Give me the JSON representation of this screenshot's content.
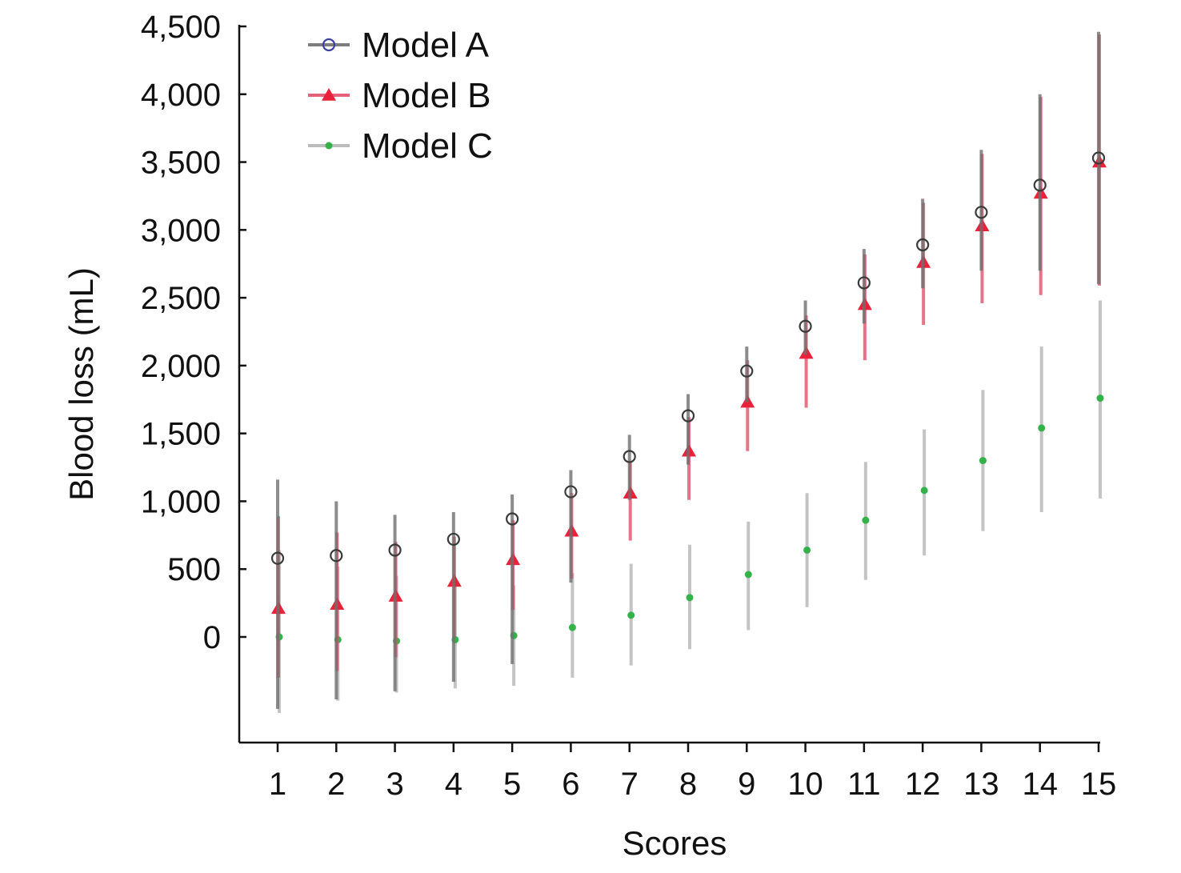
{
  "chart_data": {
    "type": "scatter",
    "title": "",
    "xlabel": "Scores",
    "ylabel": "Blood loss (mL)",
    "x": [
      1,
      2,
      3,
      4,
      5,
      6,
      7,
      8,
      9,
      10,
      11,
      12,
      13,
      14,
      15
    ],
    "x_tick_labels": [
      "1",
      "2",
      "3",
      "4",
      "5",
      "6",
      "7",
      "8",
      "9",
      "10",
      "11",
      "12",
      "13",
      "14",
      "15"
    ],
    "xlim": [
      0.3,
      15.05
    ],
    "ylim": [
      -780,
      4500
    ],
    "y_ticks": [
      0,
      500,
      1000,
      1500,
      2000,
      2500,
      3000,
      3500,
      4000,
      4500
    ],
    "y_tick_labels": [
      "0",
      "500",
      "1,000",
      "1,500",
      "2,000",
      "2,500",
      "3,000",
      "3,500",
      "4,000",
      "4,500"
    ],
    "grid": false,
    "legend_position": "top-left",
    "series": [
      {
        "name": "Model A",
        "marker": "open-circle",
        "marker_color": "#3a3a3a",
        "legend_marker_color": "#3b3fa0",
        "bar_color": "#6f6f6f",
        "values": [
          580,
          600,
          640,
          720,
          870,
          1070,
          1330,
          1630,
          1960,
          2290,
          2610,
          2890,
          3130,
          3330,
          3530
        ],
        "lower": [
          -530,
          -460,
          -400,
          -330,
          -200,
          400,
          1010,
          1270,
          1730,
          2080,
          2310,
          2570,
          2700,
          2700,
          2600
        ],
        "upper": [
          1160,
          1000,
          900,
          920,
          1050,
          1230,
          1490,
          1790,
          2140,
          2480,
          2860,
          3230,
          3590,
          4000,
          4460
        ]
      },
      {
        "name": "Model B",
        "marker": "filled-triangle",
        "marker_color": "#e8223a",
        "legend_marker_color": "#e8223a",
        "bar_color": "#e0506a",
        "values": [
          210,
          240,
          300,
          410,
          570,
          780,
          1060,
          1370,
          1730,
          2090,
          2450,
          2760,
          3030,
          3270,
          3500
        ],
        "lower": [
          -300,
          -250,
          -150,
          0,
          200,
          430,
          710,
          1010,
          1370,
          1690,
          2040,
          2300,
          2460,
          2520,
          2590
        ],
        "upper": [
          890,
          770,
          700,
          740,
          860,
          1060,
          1290,
          1620,
          2040,
          2370,
          2820,
          3200,
          3560,
          3980,
          4440
        ]
      },
      {
        "name": "Model C",
        "marker": "filled-dot",
        "marker_color": "#34b24a",
        "legend_marker_color": "#34b24a",
        "bar_color": "#b5b5b5",
        "values": [
          0,
          -20,
          -30,
          -20,
          10,
          70,
          160,
          290,
          460,
          640,
          860,
          1080,
          1300,
          1540,
          1760
        ],
        "lower": [
          -560,
          -470,
          -410,
          -380,
          -360,
          -300,
          -210,
          -90,
          50,
          220,
          420,
          600,
          780,
          920,
          1020
        ],
        "upper": [
          640,
          520,
          450,
          400,
          380,
          470,
          540,
          680,
          850,
          1060,
          1290,
          1530,
          1820,
          2140,
          2480
        ]
      }
    ]
  }
}
